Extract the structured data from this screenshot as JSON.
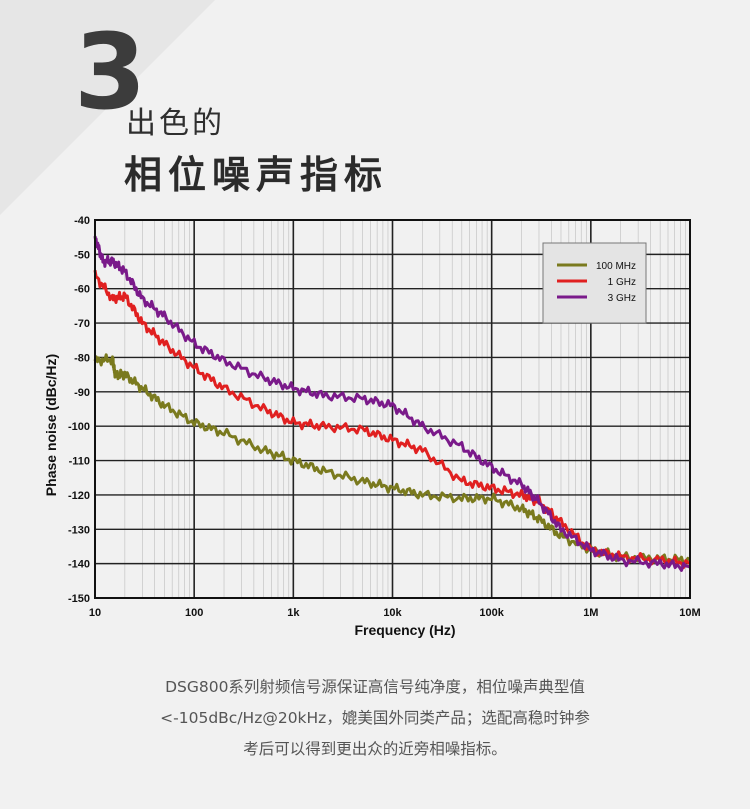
{
  "header": {
    "number": "3",
    "title_line1": "出色的",
    "title_line2": "相位噪声指标"
  },
  "chart_data": {
    "type": "line",
    "xlabel": "Frequency (Hz)",
    "ylabel": "Phase noise (dBc/Hz)",
    "x_scale": "log",
    "xlim": [
      10,
      10000000
    ],
    "ylim": [
      -150,
      -40
    ],
    "x_ticks": [
      {
        "value": 10,
        "label": "10"
      },
      {
        "value": 100,
        "label": "100"
      },
      {
        "value": 1000,
        "label": "1k"
      },
      {
        "value": 10000,
        "label": "10k"
      },
      {
        "value": 100000,
        "label": "100k"
      },
      {
        "value": 1000000,
        "label": "1M"
      },
      {
        "value": 10000000,
        "label": "10M"
      }
    ],
    "y_ticks": [
      -40,
      -50,
      -60,
      -70,
      -80,
      -90,
      -100,
      -110,
      -120,
      -130,
      -140,
      -150
    ],
    "grid": true,
    "legend_position": "top-right",
    "series": [
      {
        "name": "100 MHz",
        "color": "#7a7a1e",
        "x": [
          10,
          15,
          16,
          20,
          30,
          50,
          100,
          200,
          500,
          1000,
          2000,
          5000,
          10000,
          20000,
          50000,
          100000,
          200000,
          300000,
          500000,
          1000000,
          2000000,
          5000000,
          10000000
        ],
        "y": [
          -81,
          -80.5,
          -85,
          -85,
          -89,
          -94,
          -99,
          -102,
          -107,
          -110,
          -113,
          -116,
          -118,
          -120,
          -121,
          -121,
          -124,
          -127,
          -132,
          -136,
          -138,
          -138.5,
          -139
        ]
      },
      {
        "name": "1 GHz",
        "color": "#e02020",
        "x": [
          10,
          15,
          20,
          30,
          50,
          100,
          200,
          500,
          1000,
          2000,
          5000,
          10000,
          20000,
          50000,
          100000,
          200000,
          300000,
          500000,
          1000000,
          2000000,
          5000000,
          10000000
        ],
        "y": [
          -56,
          -63,
          -62,
          -70,
          -76,
          -83,
          -89,
          -95,
          -99,
          -100,
          -101,
          -104,
          -107,
          -116,
          -118,
          -120,
          -122,
          -128,
          -136,
          -138,
          -139,
          -140
        ]
      },
      {
        "name": "3 GHz",
        "color": "#7a1a8a",
        "x": [
          10,
          12,
          15,
          20,
          30,
          50,
          100,
          200,
          500,
          1000,
          2000,
          5000,
          10000,
          20000,
          50000,
          100000,
          200000,
          300000,
          500000,
          1000000,
          2000000,
          5000000,
          10000000
        ],
        "y": [
          -45,
          -52,
          -52,
          -55,
          -63,
          -68,
          -76,
          -81,
          -86,
          -89,
          -91,
          -92,
          -94,
          -100,
          -106,
          -112,
          -117,
          -122,
          -130,
          -136,
          -139,
          -140,
          -141
        ]
      }
    ]
  },
  "caption": {
    "line1": "DSG800系列射频信号源保证高信号纯净度，相位噪声典型值",
    "line2": "<-105dBc/Hz@20kHz，媲美国外同类产品；选配高稳时钟参",
    "line3": "考后可以得到更出众的近旁相噪指标。"
  }
}
